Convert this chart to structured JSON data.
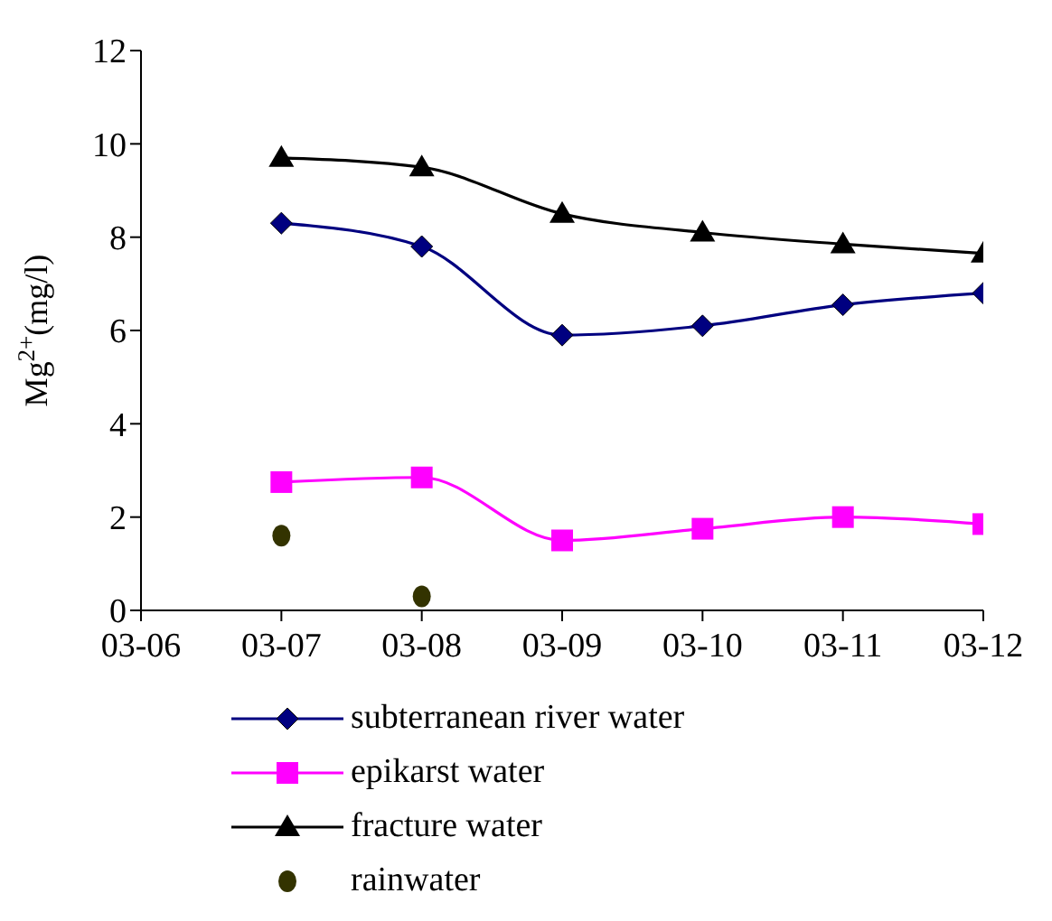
{
  "chart_data": {
    "type": "line",
    "ylabel": "Mg$^{2+}$(mg/l)",
    "categories": [
      "03-06",
      "03-07",
      "03-08",
      "03-09",
      "03-10",
      "03-11",
      "03-12"
    ],
    "ylim": [
      0,
      12
    ],
    "yticks": [
      0,
      2,
      4,
      6,
      8,
      10,
      12
    ],
    "grid": false,
    "legend": "bottom",
    "series": [
      {
        "name": "subterranean river water",
        "color": "#000080",
        "marker": "diamond",
        "values": [
          null,
          8.3,
          7.8,
          5.9,
          6.1,
          6.55,
          6.8
        ]
      },
      {
        "name": "epikarst water",
        "color": "#ff00ff",
        "marker": "square",
        "values": [
          null,
          2.75,
          2.85,
          1.5,
          1.75,
          2.0,
          1.85
        ]
      },
      {
        "name": "fracture water",
        "color": "#000000",
        "marker": "triangle",
        "values": [
          null,
          9.7,
          9.5,
          8.5,
          8.1,
          7.85,
          7.65
        ]
      },
      {
        "name": "rainwater",
        "type": "scatter",
        "color": "#333300",
        "marker": "circle",
        "values": [
          null,
          1.6,
          0.3,
          null,
          null,
          null,
          null
        ]
      }
    ]
  }
}
